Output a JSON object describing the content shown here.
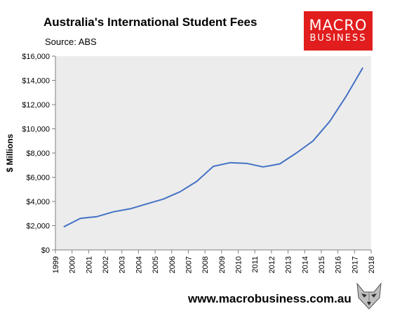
{
  "header": {
    "title": "Australia's International Student Fees",
    "subtitle": "Source: ABS"
  },
  "logo": {
    "line1": "MACRO",
    "line2": "BUSINESS",
    "bg_color": "#e11d1d"
  },
  "footer": {
    "website": "www.macrobusiness.com.au",
    "mascot_icon": "wolf-head-icon"
  },
  "colors": {
    "plot_bg": "#ececec",
    "line": "#4472c4",
    "axis": "#7f7f7f"
  },
  "chart_data": {
    "type": "line",
    "title": "Australia's International Student Fees",
    "xlabel": "",
    "ylabel": "$ Millions",
    "ylim": [
      0,
      16000
    ],
    "yticks": [
      0,
      2000,
      4000,
      6000,
      8000,
      10000,
      12000,
      14000,
      16000
    ],
    "ytick_labels": [
      "$0",
      "$2,000",
      "$4,000",
      "$6,000",
      "$8,000",
      "$10,000",
      "$12,000",
      "$14,000",
      "$16,000"
    ],
    "xlim": [
      1999,
      2018
    ],
    "xticks": [
      1999,
      2000,
      2001,
      2002,
      2003,
      2004,
      2005,
      2006,
      2007,
      2008,
      2009,
      2010,
      2011,
      2012,
      2013,
      2014,
      2015,
      2016,
      2017,
      2018
    ],
    "grid": false,
    "legend": "none",
    "series": [
      {
        "x": [
          1999.5,
          2000.5,
          2001.5,
          2002.5,
          2003.5,
          2004.5,
          2005.5,
          2006.5,
          2007.5,
          2008.5,
          2009.5,
          2010.5,
          2011.5,
          2012.5,
          2013.5,
          2014.5,
          2015.5,
          2016.5,
          2017.5
        ],
        "values": [
          1900,
          2600,
          2750,
          3150,
          3400,
          3800,
          4200,
          4800,
          5650,
          6900,
          7200,
          7150,
          6850,
          7100,
          8000,
          9000,
          10600,
          12700,
          15050
        ]
      }
    ]
  }
}
